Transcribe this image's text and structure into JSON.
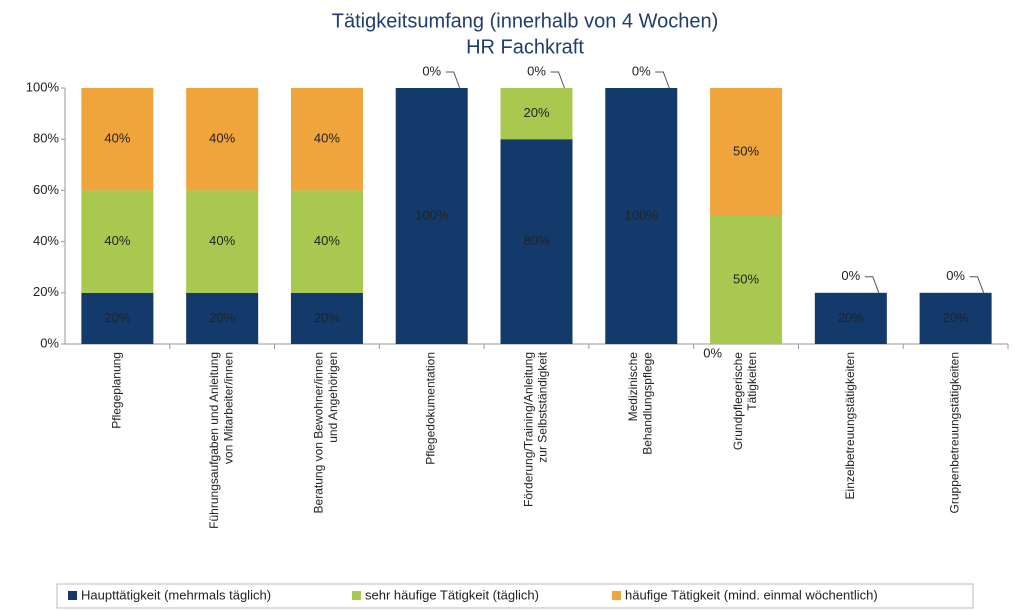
{
  "chart_data": {
    "type": "stacked_bar",
    "title": "Tätigkeitsumfang (innerhalb von 4 Wochen)",
    "subtitle": "HR Fachkraft",
    "categories": [
      "Pflegeplanung",
      "Führungsaufgaben und Anleitung\nvon Mitarbeiter/innen",
      "Beratung von Bewohner/innen\nund Angehörigen",
      "Pflegedokumentation",
      "Förderung/Training/Anleitung\nzur Selbstständigkeit",
      "Medizinische\nBehandlungspflege",
      "Grundpflegerische\nTätigkeiten",
      "Einzelbetreuungstätigkeiten",
      "Gruppenbetreuungstätigkeiten"
    ],
    "series": [
      {
        "name": "Haupttätigkeit (mehrmals täglich)",
        "color": "#133a6b",
        "values": [
          20,
          20,
          20,
          100,
          80,
          100,
          0,
          20,
          20
        ],
        "value_labels": [
          "20%",
          "20%",
          "20%",
          "100%",
          "80%",
          "100%",
          "0%",
          "20%",
          "20%"
        ]
      },
      {
        "name": "sehr häufige Tätigkeit (täglich)",
        "color": "#a9c84f",
        "values": [
          40,
          40,
          40,
          0,
          20,
          0,
          50,
          0,
          0
        ],
        "value_labels": [
          "40%",
          "40%",
          "40%",
          "0%",
          "20%",
          "0%",
          "50%",
          "0%",
          "0%"
        ]
      },
      {
        "name": "häufige Tätigkeit  (mind. einmal wöchentlich)",
        "color": "#f0a43c",
        "values": [
          40,
          40,
          40,
          0,
          0,
          0,
          50,
          0,
          0
        ],
        "value_labels": [
          "40%",
          "40%",
          "40%",
          null,
          "0%",
          null,
          "50%",
          null,
          null
        ]
      }
    ],
    "ylim": [
      0,
      100
    ],
    "yticks": [
      {
        "value": 0,
        "label": "0%"
      },
      {
        "value": 20,
        "label": "20%"
      },
      {
        "value": 40,
        "label": "40%"
      },
      {
        "value": 60,
        "label": "60%"
      },
      {
        "value": 80,
        "label": "80%"
      },
      {
        "value": 100,
        "label": "100%"
      }
    ],
    "grid": false
  }
}
